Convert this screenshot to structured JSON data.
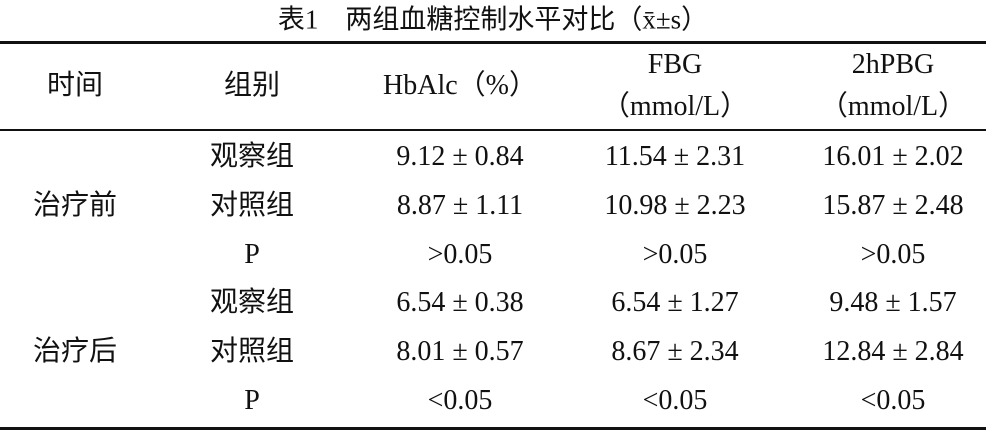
{
  "title": "表1　两组血糖控制水平对比（x̄±s）",
  "table": {
    "headers": [
      [
        "时间"
      ],
      [
        "组别"
      ],
      [
        "HbAlc（%）"
      ],
      [
        "FBG",
        "（mmol/L）"
      ],
      [
        "2hPBG",
        "（mmol/L）"
      ]
    ],
    "groups": [
      {
        "time": "治疗前",
        "rows": [
          [
            "观察组",
            "9.12 ± 0.84",
            "11.54 ± 2.31",
            "16.01 ± 2.02"
          ],
          [
            "对照组",
            "8.87 ± 1.11",
            "10.98 ± 2.23",
            "15.87 ± 2.48"
          ],
          [
            "P",
            ">0.05",
            ">0.05",
            ">0.05"
          ]
        ]
      },
      {
        "time": "治疗后",
        "rows": [
          [
            "观察组",
            "6.54 ± 0.38",
            "6.54 ± 1.27",
            "9.48 ± 1.57"
          ],
          [
            "对照组",
            "8.01 ± 0.57",
            "8.67 ± 2.34",
            "12.84 ± 2.84"
          ],
          [
            "P",
            "<0.05",
            "<0.05",
            "<0.05"
          ]
        ]
      }
    ]
  }
}
